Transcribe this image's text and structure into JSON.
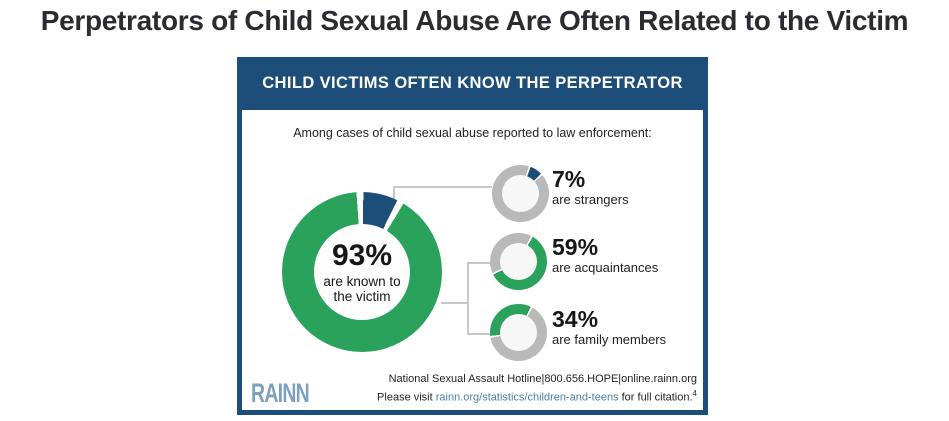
{
  "page": {
    "title": "Perpetrators of Child Sexual Abuse Are Often Related to the Victim"
  },
  "infographic": {
    "header": "CHILD VICTIMS OFTEN KNOW THE PERPETRATOR",
    "subtitle": "Among cases of child sexual abuse reported to law enforcement:",
    "main_donut": {
      "value": "93%",
      "label_line1": "are known to",
      "label_line2": "the victim"
    },
    "small_donuts": [
      {
        "value": "7%",
        "label": "are strangers"
      },
      {
        "value": "59%",
        "label": "are acquaintances"
      },
      {
        "value": "34%",
        "label": "are family members"
      }
    ],
    "footer": {
      "hotline_line": "National Sexual Assault Hotline|800.656.HOPE|online.rainn.org",
      "citation_prefix": "Please visit ",
      "citation_link": "rainn.org/statistics/children-and-teens",
      "citation_suffix": " for full citation.",
      "citation_superscript": "4"
    },
    "logo": "RAINN"
  },
  "colors": {
    "navy": "#1d4e79",
    "green": "#2aa25c",
    "ring_gray": "#b9b9b9",
    "link_blue": "#4a7fa5",
    "title_text": "#2b2b32"
  },
  "donut_styles": {
    "main": {
      "percent": 7,
      "start_deg": 1,
      "gap_deg": 5,
      "slice_color": "#1d4e79",
      "ring_color": "#2aa25c"
    },
    "strangers": {
      "percent": 7,
      "start_deg": 21,
      "gap_deg": 4,
      "slice_color": "#1d4e79",
      "ring_color": "#b9b9b9"
    },
    "acquaintances": {
      "percent": 59,
      "start_deg": 30,
      "gap_deg": 4,
      "slice_color": "#2aa25c",
      "ring_color": "#b9b9b9"
    },
    "family": {
      "percent": 34,
      "start_deg": 263,
      "gap_deg": 4,
      "slice_color": "#2aa25c",
      "ring_color": "#b9b9b9"
    }
  },
  "chart_data": {
    "type": "pie",
    "style": "donut-set",
    "title": "CHILD VICTIMS OFTEN KNOW THE PERPETRATOR",
    "subtitle": "Among cases of child sexual abuse reported to law enforcement:",
    "unit": "%",
    "main_donut": {
      "slices": [
        {
          "label": "are known to the victim",
          "value": 93,
          "color": "#2aa25c"
        },
        {
          "label": "are strangers",
          "value": 7,
          "color": "#1d4e79"
        }
      ]
    },
    "breakdown_donuts": [
      {
        "label": "are strangers",
        "value": 7,
        "color": "#1d4e79",
        "remainder_color": "#b9b9b9"
      },
      {
        "label": "are acquaintances",
        "value": 59,
        "color": "#2aa25c",
        "remainder_color": "#b9b9b9"
      },
      {
        "label": "are family members",
        "value": 34,
        "color": "#2aa25c",
        "remainder_color": "#b9b9b9"
      }
    ],
    "legend_position": "right-of-each-donut",
    "source_line": "National Sexual Assault Hotline|800.656.HOPE|online.rainn.org"
  }
}
